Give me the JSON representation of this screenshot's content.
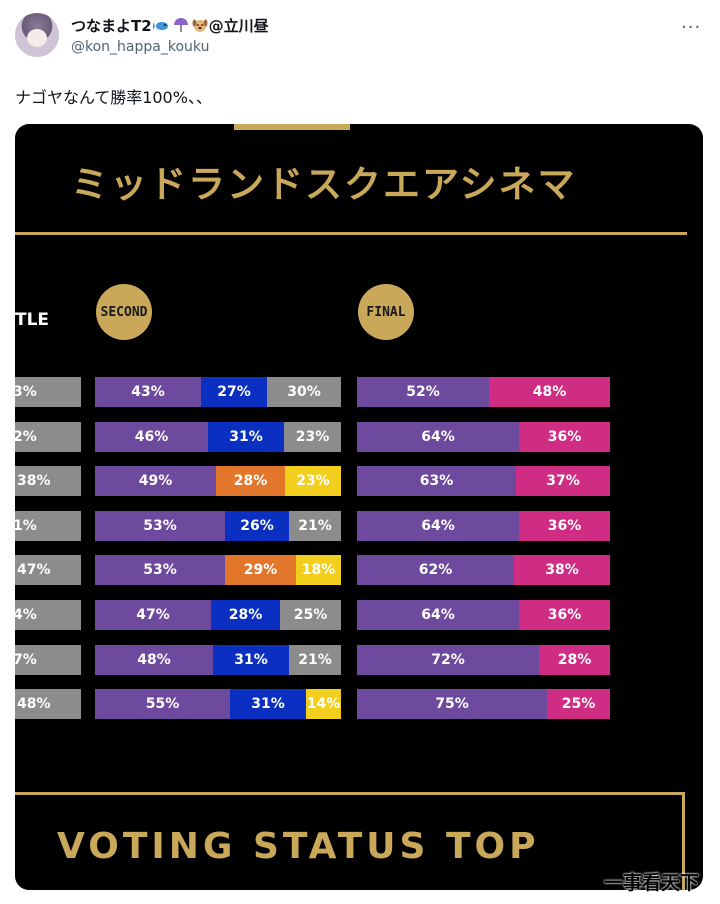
{
  "tweet": {
    "display_name": "つなまよT2",
    "display_suffix": "@立川昼",
    "emojis": [
      "fish-emoji",
      "umbrella-emoji",
      "dog-emoji"
    ],
    "handle": "@kon_happa_kouku",
    "more": "···",
    "text": "ナゴヤなんて勝率100%、、"
  },
  "image": {
    "title_jp": "ミッドランドスクエアシネマ",
    "left_label": "TLE",
    "second_label": "SECOND",
    "final_label": "FINAL",
    "bottom_title": "VOTING STATUS TOP"
  },
  "colors": {
    "purple": "#6e4a9e",
    "blue": "#0b2fc0",
    "gray": "#8c8c8c",
    "orange": "#e2762b",
    "yellow": "#f2cf1d",
    "pink": "#cf2d83",
    "gold": "#c9a85a"
  },
  "chart_data": {
    "type": "bar",
    "rows": [
      {
        "first": "3%",
        "second": [
          {
            "value": 43,
            "color": "purple"
          },
          {
            "value": 27,
            "color": "blue"
          },
          {
            "value": 30,
            "color": "gray"
          }
        ],
        "final": [
          {
            "value": 52,
            "color": "purple"
          },
          {
            "value": 48,
            "color": "pink"
          }
        ]
      },
      {
        "first": "2%",
        "second": [
          {
            "value": 46,
            "color": "purple"
          },
          {
            "value": 31,
            "color": "blue"
          },
          {
            "value": 23,
            "color": "gray"
          }
        ],
        "final": [
          {
            "value": 64,
            "color": "purple"
          },
          {
            "value": 36,
            "color": "pink"
          }
        ]
      },
      {
        "first": "38%",
        "second": [
          {
            "value": 49,
            "color": "purple"
          },
          {
            "value": 28,
            "color": "orange"
          },
          {
            "value": 23,
            "color": "yellow"
          }
        ],
        "final": [
          {
            "value": 63,
            "color": "purple"
          },
          {
            "value": 37,
            "color": "pink"
          }
        ]
      },
      {
        "first": "1%",
        "second": [
          {
            "value": 53,
            "color": "purple"
          },
          {
            "value": 26,
            "color": "blue"
          },
          {
            "value": 21,
            "color": "gray"
          }
        ],
        "final": [
          {
            "value": 64,
            "color": "purple"
          },
          {
            "value": 36,
            "color": "pink"
          }
        ]
      },
      {
        "first": "47%",
        "second": [
          {
            "value": 53,
            "color": "purple"
          },
          {
            "value": 29,
            "color": "orange"
          },
          {
            "value": 18,
            "color": "yellow"
          }
        ],
        "final": [
          {
            "value": 62,
            "color": "purple"
          },
          {
            "value": 38,
            "color": "pink"
          }
        ]
      },
      {
        "first": "4%",
        "second": [
          {
            "value": 47,
            "color": "purple"
          },
          {
            "value": 28,
            "color": "blue"
          },
          {
            "value": 25,
            "color": "gray"
          }
        ],
        "final": [
          {
            "value": 64,
            "color": "purple"
          },
          {
            "value": 36,
            "color": "pink"
          }
        ]
      },
      {
        "first": "7%",
        "second": [
          {
            "value": 48,
            "color": "purple"
          },
          {
            "value": 31,
            "color": "blue"
          },
          {
            "value": 21,
            "color": "gray"
          }
        ],
        "final": [
          {
            "value": 72,
            "color": "purple"
          },
          {
            "value": 28,
            "color": "pink"
          }
        ]
      },
      {
        "first": "48%",
        "second": [
          {
            "value": 55,
            "color": "purple"
          },
          {
            "value": 31,
            "color": "blue"
          },
          {
            "value": 14,
            "color": "yellow"
          }
        ],
        "final": [
          {
            "value": 75,
            "color": "purple"
          },
          {
            "value": 25,
            "color": "pink"
          }
        ]
      }
    ]
  },
  "watermark": "一事看天下"
}
